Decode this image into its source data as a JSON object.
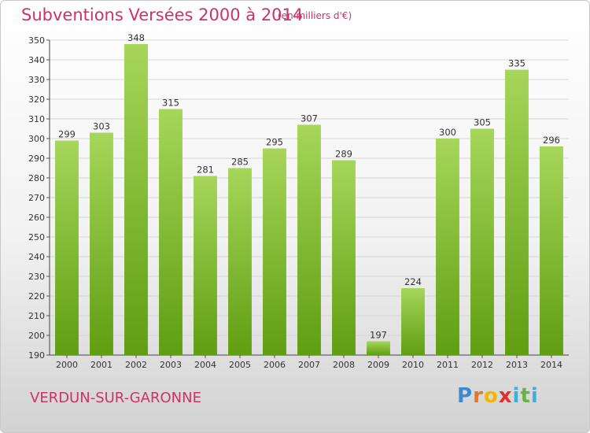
{
  "header": {
    "title": "Subventions Versées 2000 à 2014",
    "unit_note": "(en milliers d'€)"
  },
  "footer": {
    "commune": "VERDUN-SUR-GARONNE",
    "brand": [
      "P",
      "r",
      "o",
      "x",
      "i",
      "t",
      "i"
    ]
  },
  "colors": {
    "title": "#cc3366",
    "bar_light": "#a6d65a",
    "bar_dark": "#5f9e12",
    "brand_letters": [
      "#3a8ad4",
      "#e87722",
      "#f4b400",
      "#e03030",
      "#3ab0e0",
      "#6ab04c",
      "#3ab0e0"
    ]
  },
  "chart_data": {
    "type": "bar",
    "categories": [
      "2000",
      "2001",
      "2002",
      "2003",
      "2004",
      "2005",
      "2006",
      "2007",
      "2008",
      "2009",
      "2010",
      "2011",
      "2012",
      "2013",
      "2014"
    ],
    "values": [
      299,
      303,
      348,
      315,
      281,
      285,
      295,
      307,
      289,
      197,
      224,
      300,
      305,
      335,
      296
    ],
    "ylim": [
      190,
      350
    ],
    "yticks": [
      190,
      200,
      210,
      220,
      230,
      240,
      250,
      260,
      270,
      280,
      290,
      300,
      310,
      320,
      330,
      340,
      350
    ],
    "grid": true
  }
}
